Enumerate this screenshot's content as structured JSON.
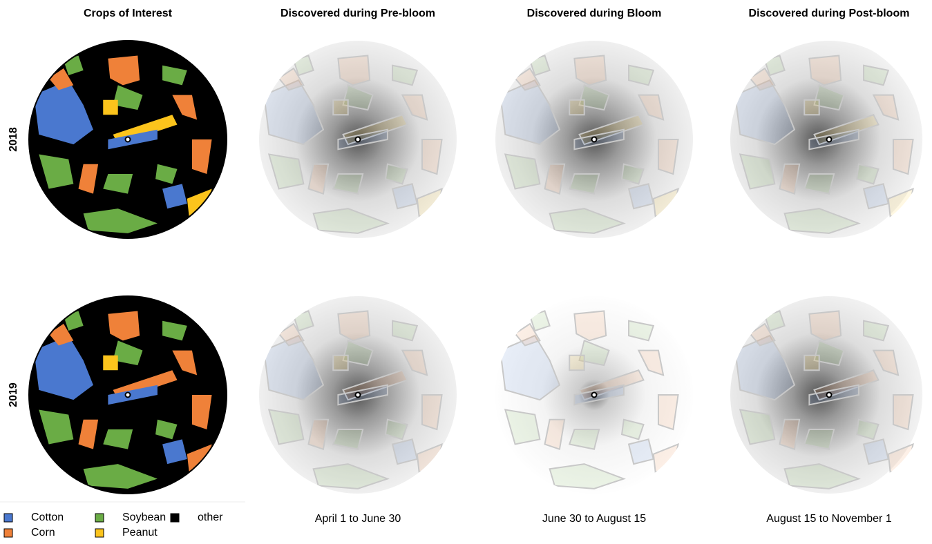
{
  "columns": [
    "Crops of Interest",
    "Discovered during Pre-bloom",
    "Discovered during Bloom",
    "Discovered during Post-bloom"
  ],
  "rows": [
    "2018",
    "2019"
  ],
  "legend": [
    {
      "label": "Cotton",
      "color": "#4a78cf"
    },
    {
      "label": "Corn",
      "color": "#ef8139"
    },
    {
      "label": "Soybean",
      "color": "#6aac45"
    },
    {
      "label": "Peanut",
      "color": "#fcc41c"
    },
    {
      "label": "other",
      "color": "#000000"
    }
  ],
  "captions": [
    "April 1 to June 30",
    "June 30 to August 15",
    "August 15 to November 1"
  ]
}
